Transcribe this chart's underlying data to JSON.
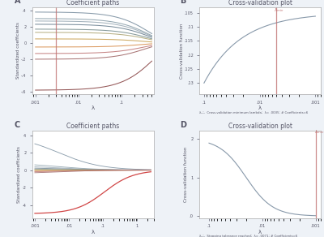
{
  "title_A": "Coefficient paths",
  "title_B": "Cross-validation plot",
  "title_C": "Coefficient paths",
  "title_D": "Cross-validation plot",
  "panel_labels": [
    "A",
    "B",
    "C",
    "D"
  ],
  "background_color": "#eef2f7",
  "vline_color": "#c07070",
  "lambda_vline_A": 0.003,
  "lambda_vline_B": 0.005,
  "lambda_vline_D": 0.001,
  "caption_B": "λₘᴵₙ  Cross-validation minimum lambda;  λ= .0035; # Coefficients=6",
  "caption_D": "λₘᴵₙ  Stopping tolerance reached;  λ= .0071; # Coefficients=6",
  "ylabel_coeff": "Standardized coefficients",
  "ylabel_cv": "Cross-validation function",
  "xlabel": "λ",
  "font_color": "#555566",
  "colors_A": [
    "#7a8fa0",
    "#8a9faa",
    "#9aaab5",
    "#6a8090",
    "#7a9090",
    "#b0a878",
    "#c8a050",
    "#d89050",
    "#c07878",
    "#a06868",
    "#884444"
  ],
  "colors_C": [
    "#cc3333",
    "#7a8fa0",
    "#8a9faa",
    "#9aaab5",
    "#6a8090",
    "#7a9090",
    "#b0a878",
    "#c8a050",
    "#d89050",
    "#c07878",
    "#a06868"
  ]
}
